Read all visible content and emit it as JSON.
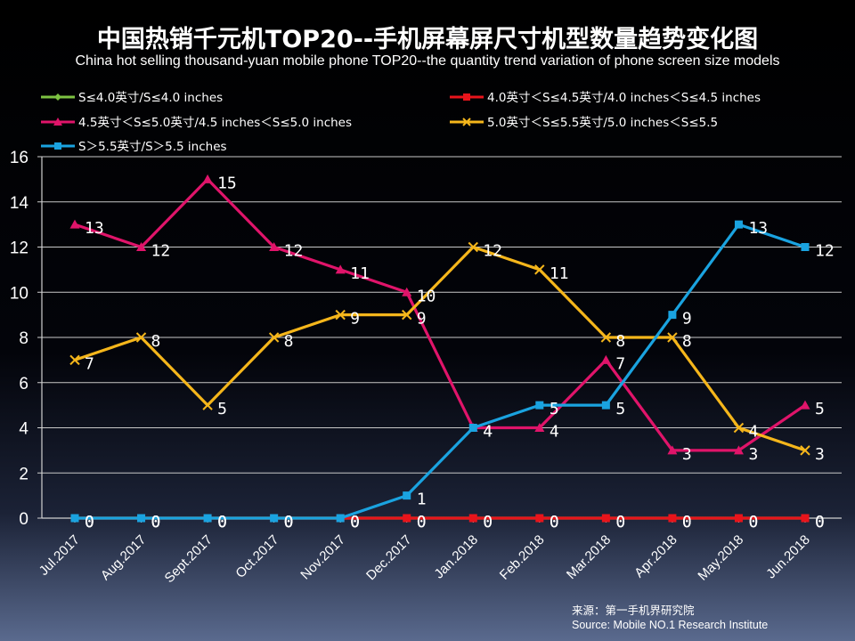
{
  "title": "中国热销千元机TOP20--手机屏幕屏尺寸机型数量趋势变化图",
  "subtitle": "China hot selling thousand-yuan mobile phone TOP20--the quantity trend variation of phone screen size models",
  "source": {
    "line1": "来源：第一手机界研究院",
    "line2": "Source: Mobile NO.1 Research Institute"
  },
  "chart_data": {
    "type": "line",
    "categories": [
      "Jul.2017",
      "Aug.2017",
      "Sept.2017",
      "Oct.2017",
      "Nov.2017",
      "Dec.2017",
      "Jan.2018",
      "Feb.2018",
      "Mar.2018",
      "Apr.2018",
      "May.2018",
      "Jun.2018"
    ],
    "ylim": [
      0,
      16
    ],
    "yticks": [
      "0",
      "2",
      "4",
      "6",
      "8",
      "10",
      "12",
      "14",
      "16"
    ],
    "grid": true,
    "legend_position": "top",
    "data_labels": true,
    "series": [
      {
        "name": "S≤4.0英寸/S≤4.0 inches",
        "color": "#7dc242",
        "marker": "diamond",
        "values": [
          0,
          0,
          0,
          0,
          0,
          0,
          0,
          0,
          0,
          0,
          0,
          0
        ],
        "labels": [
          "0",
          "0",
          "0",
          "0",
          "0",
          "0",
          "0",
          "0",
          "0",
          "0",
          "0",
          "0"
        ]
      },
      {
        "name": "4.0英寸＜S≤4.5英寸/4.0 inches＜S≤4.5 inches",
        "color": "#e8141b",
        "marker": "square",
        "values": [
          0,
          0,
          0,
          0,
          0,
          0,
          0,
          0,
          0,
          0,
          0,
          0
        ],
        "labels": [
          "0",
          "0",
          "0",
          "0",
          "0",
          "0",
          "0",
          "0",
          "0",
          "0",
          "0",
          "0"
        ]
      },
      {
        "name": "4.5英寸＜S≤5.0英寸/4.5 inches＜S≤5.0 inches",
        "color": "#e0146a",
        "marker": "triangle",
        "values": [
          13,
          12,
          15,
          12,
          11,
          10,
          4,
          4,
          7,
          3,
          3,
          5
        ],
        "labels": [
          "13",
          "12",
          "15",
          "12",
          "11",
          "10",
          "4",
          "4",
          "7",
          "3",
          "3",
          "5"
        ]
      },
      {
        "name": "5.0英寸＜S≤5.5英寸/5.0 inches＜S≤5.5",
        "color": "#f5b61b",
        "marker": "x",
        "values": [
          7,
          8,
          5,
          8,
          9,
          9,
          12,
          11,
          8,
          8,
          4,
          3
        ],
        "labels": [
          "7",
          "8",
          "5",
          "8",
          "9",
          "9",
          "12",
          "11",
          "8",
          "8",
          "4",
          "3"
        ]
      },
      {
        "name": "S＞5.5英寸/S＞5.5 inches",
        "color": "#1aa3e0",
        "marker": "square",
        "values": [
          0,
          0,
          0,
          0,
          0,
          1,
          4,
          5,
          5,
          9,
          13,
          12
        ],
        "labels": [
          "0",
          "0",
          "0",
          "0",
          "0",
          "1",
          "4",
          "5",
          "5",
          "9",
          "13",
          "12"
        ]
      }
    ]
  }
}
